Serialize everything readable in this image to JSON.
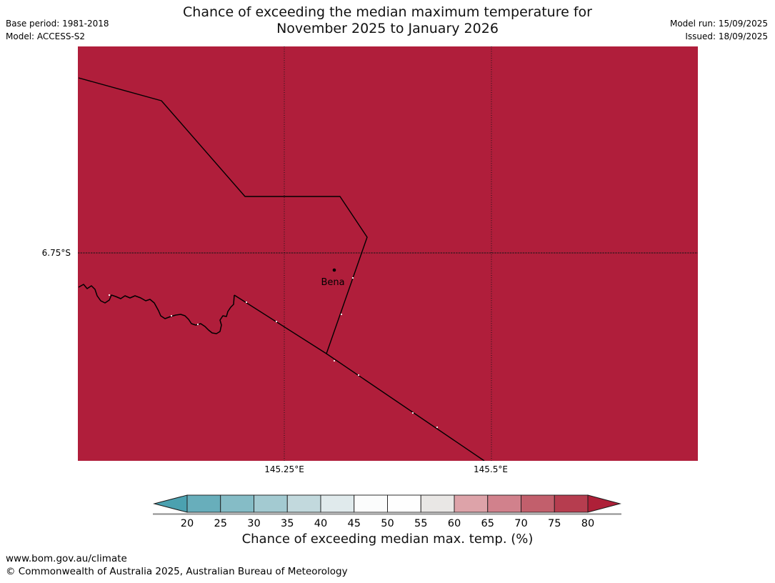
{
  "header": {
    "title_line1": "Chance of exceeding the median maximum temperature for",
    "title_line2": "November 2025 to January 2026",
    "base_period": "Base period: 1981-2018",
    "model": "Model: ACCESS-S2",
    "model_run": "Model run: 15/09/2025",
    "issued": "Issued: 18/09/2025"
  },
  "map": {
    "fill": "#b01e3b",
    "place_label": "Bena",
    "lat_label": "6.75°S",
    "lon_label_1": "145.25°E",
    "lon_label_2": "145.5°E"
  },
  "colorbar": {
    "caption": "Chance of exceeding median max. temp. (%)",
    "ticks": [
      "20",
      "25",
      "30",
      "35",
      "40",
      "45",
      "50",
      "55",
      "60",
      "65",
      "70",
      "75",
      "80"
    ],
    "segments": [
      "#68aebb",
      "#85bcc6",
      "#a3cad1",
      "#c2d9dd",
      "#e0eaec",
      "#fbfcfc",
      "#fefefe",
      "#e9e7e5",
      "#dda3a9",
      "#d1818c",
      "#c25f6c",
      "#b63d4f"
    ],
    "under_color": "#4ba1b0",
    "over_color": "#ae2038",
    "outline_color": "#1a1a1a",
    "baseline_color": "#8c8c8c"
  },
  "footer": {
    "url": "www.bom.gov.au/climate",
    "copyright": "© Commonwealth of Australia 2025, Australian Bureau of Meteorology"
  }
}
